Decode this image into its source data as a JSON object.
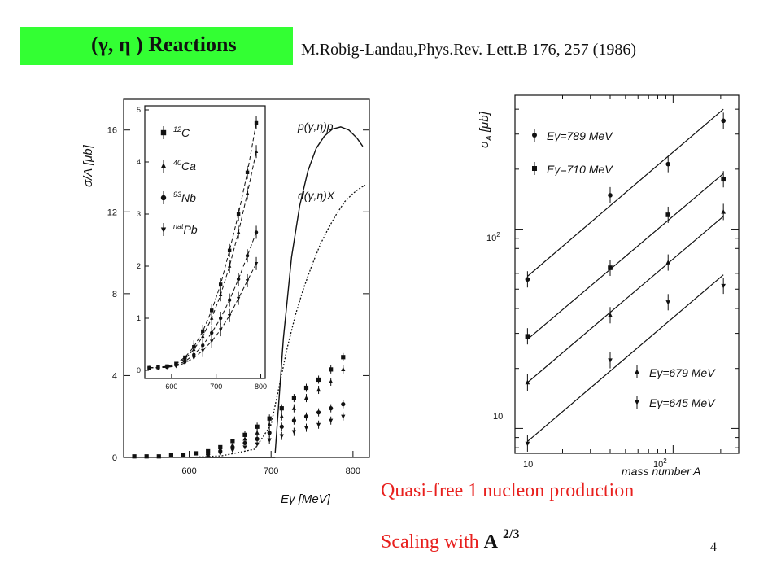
{
  "slide": {
    "title": "(γ, η ) Reactions",
    "citation": "M.Robig-Landau,Phys.Rev. Lett.B 176, 257 (1986)",
    "note_line1": "Quasi-free 1 nucleon production",
    "note_line2_prefix": "Scaling with ",
    "note_line2_A": "A",
    "note_line2_exp": "2/3",
    "page_number": "4",
    "title_bg_color": "#33ff33",
    "note_color": "#e8201e"
  },
  "chart_data": [
    {
      "type": "scatter",
      "panel": "left-main",
      "xlabel": "Eγ [MeV]",
      "ylabel": "σ/A [μb]",
      "xlim": [
        520,
        820
      ],
      "ylim": [
        0,
        17.5
      ],
      "xticks": [
        600,
        700,
        800
      ],
      "yticks": [
        0,
        4,
        8,
        12,
        16
      ],
      "curve_labels": [
        "p(γ,η)p",
        "d(γ,η)X"
      ],
      "series": [
        {
          "name": "p(γ,η)p",
          "style": "solid",
          "x": [
            705,
            715,
            725,
            735,
            745,
            755,
            765,
            775,
            785,
            795,
            805,
            812
          ],
          "y": [
            0.2,
            5.8,
            9.8,
            12.3,
            14.0,
            15.1,
            15.7,
            16.05,
            16.15,
            16.0,
            15.6,
            15.2
          ]
        },
        {
          "name": "d(γ,η)X",
          "style": "dotted",
          "x": [
            600,
            640,
            680,
            700,
            710,
            720,
            730,
            740,
            750,
            760,
            770,
            780,
            790,
            800,
            810,
            815
          ],
          "y": [
            0.0,
            0.08,
            0.4,
            1.6,
            3.5,
            5.4,
            7.0,
            8.3,
            9.4,
            10.4,
            11.2,
            11.9,
            12.5,
            12.9,
            13.2,
            13.3
          ]
        },
        {
          "name": "12C",
          "marker": "square",
          "x": [
            533,
            548,
            563,
            578,
            593,
            608,
            623,
            638,
            653,
            668,
            683,
            698,
            713,
            728,
            743,
            758,
            773,
            788
          ],
          "y": [
            0.05,
            0.05,
            0.05,
            0.1,
            0.1,
            0.2,
            0.3,
            0.5,
            0.8,
            1.1,
            1.5,
            1.9,
            2.4,
            2.9,
            3.4,
            3.8,
            4.3,
            4.9
          ]
        },
        {
          "name": "40Ca",
          "marker": "triangle-up",
          "x": [
            623,
            638,
            653,
            668,
            683,
            698,
            713,
            728,
            743,
            758,
            773,
            788
          ],
          "y": [
            0.2,
            0.4,
            0.6,
            0.9,
            1.2,
            1.6,
            2.0,
            2.4,
            2.9,
            3.3,
            3.7,
            4.3
          ]
        },
        {
          "name": "93Nb",
          "marker": "circle",
          "x": [
            623,
            638,
            653,
            668,
            683,
            698,
            713,
            728,
            743,
            758,
            773,
            788
          ],
          "y": [
            0.15,
            0.3,
            0.5,
            0.7,
            0.9,
            1.2,
            1.5,
            1.8,
            2.0,
            2.2,
            2.4,
            2.6
          ]
        },
        {
          "name": "natPb",
          "marker": "triangle-down",
          "x": [
            623,
            638,
            653,
            668,
            683,
            698,
            713,
            728,
            743,
            758,
            773,
            788
          ],
          "y": [
            0.1,
            0.2,
            0.35,
            0.5,
            0.65,
            0.85,
            1.05,
            1.25,
            1.45,
            1.6,
            1.8,
            2.0
          ]
        }
      ]
    },
    {
      "type": "scatter",
      "panel": "left-inset",
      "xlim": [
        540,
        810
      ],
      "ylim": [
        0,
        5
      ],
      "xticks": [
        600,
        700,
        800
      ],
      "yticks": [
        0,
        1,
        2,
        3,
        4,
        5
      ],
      "legend": [
        "12C",
        "40Ca",
        "93Nb",
        "natPb"
      ],
      "series": [
        {
          "name": "12C",
          "marker": "square",
          "x": [
            550,
            570,
            590,
            610,
            630,
            650,
            670,
            690,
            710,
            730,
            750,
            770,
            790
          ],
          "y": [
            0.05,
            0.06,
            0.08,
            0.13,
            0.25,
            0.45,
            0.75,
            1.15,
            1.65,
            2.3,
            3.0,
            3.8,
            4.75
          ]
        },
        {
          "name": "40Ca",
          "marker": "triangle-up",
          "x": [
            550,
            570,
            590,
            610,
            630,
            650,
            670,
            690,
            710,
            730,
            750,
            770,
            790
          ],
          "y": [
            0.05,
            0.05,
            0.07,
            0.12,
            0.22,
            0.4,
            0.65,
            1.0,
            1.45,
            2.0,
            2.65,
            3.4,
            4.2
          ]
        },
        {
          "name": "93Nb",
          "marker": "circle",
          "x": [
            550,
            570,
            590,
            610,
            630,
            650,
            670,
            690,
            710,
            730,
            750,
            770,
            790
          ],
          "y": [
            0.05,
            0.05,
            0.06,
            0.1,
            0.17,
            0.3,
            0.48,
            0.72,
            1.0,
            1.35,
            1.75,
            2.2,
            2.65
          ]
        },
        {
          "name": "natPb",
          "marker": "triangle-down",
          "x": [
            550,
            570,
            590,
            610,
            630,
            650,
            670,
            690,
            710,
            730,
            750,
            770,
            790
          ],
          "y": [
            0.05,
            0.05,
            0.06,
            0.08,
            0.14,
            0.24,
            0.38,
            0.56,
            0.78,
            1.05,
            1.38,
            1.72,
            2.05
          ]
        }
      ]
    },
    {
      "type": "scatter",
      "panel": "right",
      "xlabel": "mass number A",
      "ylabel": "σA [μb]",
      "xscale": "log",
      "yscale": "log",
      "xlim": [
        10,
        260
      ],
      "ylim": [
        7.5,
        470
      ],
      "xtick_labels": [
        "10",
        "10²"
      ],
      "ytick_labels": [
        "10",
        "10²"
      ],
      "series": [
        {
          "name": "Eγ=789 MeV",
          "marker": "circle",
          "x": [
            12,
            40,
            93,
            208
          ],
          "y": [
            56,
            148,
            212,
            350
          ],
          "fit": [
            [
              12,
              58
            ],
            [
              208,
              400
            ]
          ]
        },
        {
          "name": "Eγ=710 MeV",
          "marker": "square",
          "x": [
            12,
            40,
            93,
            208
          ],
          "y": [
            29,
            64,
            118,
            178
          ],
          "fit": [
            [
              12,
              28
            ],
            [
              208,
              190
            ]
          ]
        },
        {
          "name": "Eγ=679 MeV",
          "marker": "triangle-up",
          "x": [
            12,
            40,
            93,
            208
          ],
          "y": [
            17,
            37,
            68,
            122
          ],
          "fit": [
            [
              12,
              17
            ],
            [
              208,
              116
            ]
          ]
        },
        {
          "name": "Eγ=645 MeV",
          "marker": "triangle-down",
          "x": [
            12,
            40,
            93,
            208
          ],
          "y": [
            8.4,
            22,
            43,
            52
          ],
          "fit": [
            [
              12,
              8.6
            ],
            [
              208,
              59
            ]
          ]
        }
      ]
    }
  ]
}
